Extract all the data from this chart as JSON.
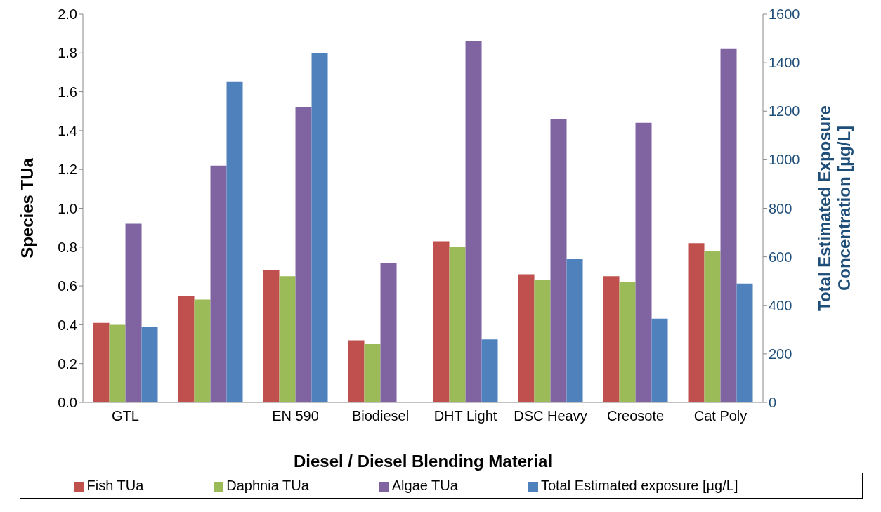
{
  "chart_data": {
    "type": "bar",
    "xlabel": "Diesel / Diesel Blending Material",
    "ylabel": "Species TUa",
    "y2label": "Total Estimated Exposure Concentration [µg/L]",
    "categories": [
      "GTL",
      null,
      "EN 590",
      "Biodiesel",
      "DHT Light",
      "DSC Heavy",
      "Creosote",
      "Cat Poly"
    ],
    "series": [
      {
        "name": "Fish TUa",
        "color": "#c0504d",
        "values": [
          0.41,
          0.55,
          0.68,
          0.32,
          0.83,
          0.66,
          0.65,
          0.82
        ]
      },
      {
        "name": "Daphnia TUa",
        "color": "#9bbb59",
        "values": [
          0.4,
          0.53,
          0.65,
          0.3,
          0.8,
          0.63,
          0.62,
          0.78
        ]
      },
      {
        "name": "Algae TUa",
        "color": "#8064a2",
        "values": [
          0.92,
          1.22,
          1.52,
          0.72,
          1.86,
          1.46,
          1.44,
          1.82
        ]
      },
      {
        "name": "Total Estimated exposure [µg/L]",
        "color": "#4f81bd",
        "axis": "y2",
        "values": [
          310,
          1320,
          1440,
          null,
          260,
          590,
          345,
          490
        ]
      }
    ],
    "ylim": [
      0,
      2
    ],
    "yticks": [
      {
        "value": 0,
        "label": "0.0"
      },
      {
        "value": 0.2,
        "label": "0.2"
      },
      {
        "value": 0.4,
        "label": "0.4"
      },
      {
        "value": 0.6,
        "label": "0.6"
      },
      {
        "value": 0.8,
        "label": "0.8"
      },
      {
        "value": 1,
        "label": "1.0"
      },
      {
        "value": 1.2,
        "label": "1.2"
      },
      {
        "value": 1.4,
        "label": "1.4"
      },
      {
        "value": 1.6,
        "label": "1.6"
      },
      {
        "value": 1.8,
        "label": "1.8"
      },
      {
        "value": 2,
        "label": "2.0"
      }
    ],
    "y2lim": [
      0,
      1600
    ],
    "y2ticks": [
      0,
      200,
      400,
      600,
      800,
      1000,
      1200,
      1400,
      1600
    ],
    "legend": "bottom"
  }
}
